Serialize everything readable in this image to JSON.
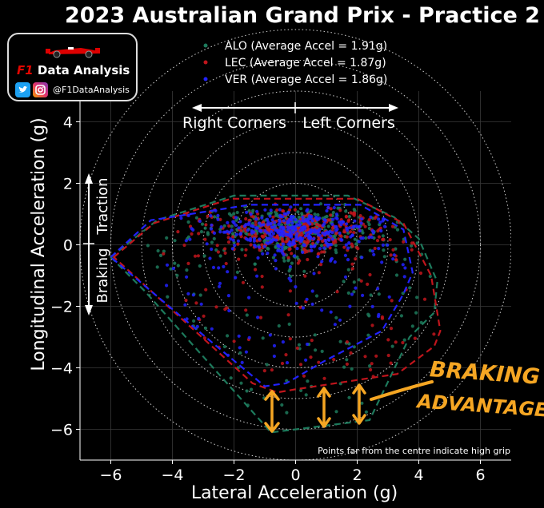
{
  "chart_data": {
    "type": "scatter",
    "title": "2023 Australian Grand Prix - Practice 2",
    "xlabel": "Lateral Acceleration (g)",
    "ylabel": "Longitudinal Acceleration (g)",
    "xlim": [
      -7,
      7
    ],
    "ylim": [
      -7,
      5
    ],
    "x_ticks": [
      -6,
      -4,
      -2,
      0,
      2,
      4,
      6
    ],
    "y_ticks": [
      4,
      2,
      0,
      -2,
      -4,
      -6
    ],
    "x_tick_labels": [
      "−6",
      "−4",
      "−2",
      "0",
      "2",
      "4",
      "6"
    ],
    "y_tick_labels": [
      "4",
      "2",
      "0",
      "−2",
      "−4",
      "−6"
    ],
    "grid": true,
    "circle_radii": [
      1,
      2,
      3,
      4,
      5,
      6,
      7
    ],
    "legend_position": "top-center",
    "series": [
      {
        "name": "ALO (Average Accel = 1.91g)",
        "color": "#1d7a5c",
        "hull": [
          [
            -6.0,
            -0.4
          ],
          [
            -4.5,
            0.8
          ],
          [
            -2.0,
            1.6
          ],
          [
            1.7,
            1.6
          ],
          [
            3.2,
            0.9
          ],
          [
            4.0,
            0.2
          ],
          [
            4.6,
            -1.2
          ],
          [
            4.5,
            -2.2
          ],
          [
            3.7,
            -3.0
          ],
          [
            2.4,
            -5.7
          ],
          [
            -0.8,
            -6.1
          ],
          [
            -4.9,
            -1.5
          ]
        ]
      },
      {
        "name": "LEC (Average Accel = 1.87g)",
        "color": "#c0151c",
        "hull": [
          [
            -5.9,
            -0.4
          ],
          [
            -4.6,
            0.7
          ],
          [
            -2.1,
            1.5
          ],
          [
            2.0,
            1.5
          ],
          [
            3.5,
            0.7
          ],
          [
            4.4,
            -1.0
          ],
          [
            4.7,
            -2.8
          ],
          [
            4.5,
            -3.3
          ],
          [
            3.3,
            -4.2
          ],
          [
            0.0,
            -4.7
          ],
          [
            -0.6,
            -4.8
          ],
          [
            -1.4,
            -4.5
          ]
        ]
      },
      {
        "name": "VER (Average Accel = 1.86g)",
        "color": "#2222ff",
        "hull": [
          [
            -6.0,
            -0.4
          ],
          [
            -4.7,
            0.8
          ],
          [
            -1.5,
            1.3
          ],
          [
            2.1,
            1.3
          ],
          [
            3.5,
            0.5
          ],
          [
            3.8,
            -0.9
          ],
          [
            3.5,
            -1.6
          ],
          [
            2.8,
            -2.8
          ],
          [
            0.9,
            -3.8
          ],
          [
            -0.3,
            -4.5
          ],
          [
            -1.0,
            -4.6
          ],
          [
            -3.4,
            -2.6
          ]
        ]
      }
    ],
    "annotations": {
      "direction_labels": {
        "right": "Right Corners",
        "left": "Left Corners",
        "traction": "Traction",
        "braking": "Braking"
      },
      "footnote": "Points far from the centre indicate high grip",
      "handwritten": [
        "BRAKING",
        "ADVANTAGE"
      ],
      "handwritten_color": "#f5a623"
    }
  },
  "branding": {
    "name_prefix": "F1",
    "name": "Data Analysis",
    "handle": "@F1DataAnalysis",
    "icons": [
      "twitter-icon",
      "instagram-icon",
      "race-car-icon"
    ]
  }
}
